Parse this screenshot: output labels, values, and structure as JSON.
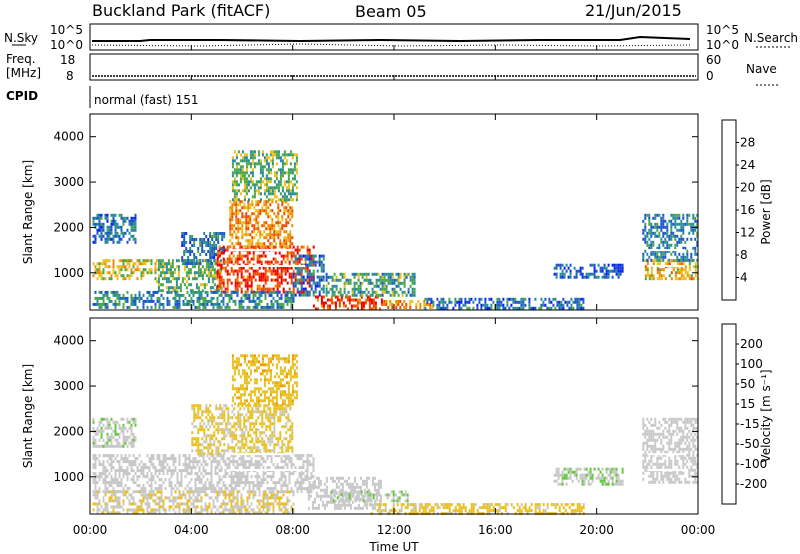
{
  "header": {
    "site": "Buckland Park (fitACF)",
    "beam": "Beam 05",
    "date": "21/Jun/2015"
  },
  "strips": {
    "nsky_label": "N.Sky",
    "nsearch_label": "N.Search",
    "noise_ticks": [
      "10^5",
      "10^0"
    ],
    "freq_label_1": "Freq.",
    "freq_label_2": "[MHz]",
    "freq_ticks": [
      "18",
      "8"
    ],
    "nave_label": "Nave",
    "nave_ticks": [
      "60",
      "0"
    ],
    "cpid_label": "CPID",
    "cpid_text": "normal (fast) 151"
  },
  "x_axis": {
    "label": "Time UT",
    "ticks": [
      "00:00",
      "04:00",
      "08:00",
      "12:00",
      "16:00",
      "20:00",
      "00:00"
    ]
  },
  "colors": {
    "power_scale": [
      "#0a22ee",
      "#1e56c8",
      "#2a8c96",
      "#4aa84a",
      "#e8c020",
      "#f08a00",
      "#f04a00",
      "#ee0000"
    ],
    "velocity_scale": [
      "#ee0000",
      "#f06000",
      "#f09a00",
      "#e8c020",
      "#c8c8c8",
      "#c8c8c8",
      "#64c83c",
      "#3c9c50",
      "#2850a0",
      "#1e32c8"
    ],
    "ground_scatter": "#c8c8c8"
  },
  "chart_data": [
    {
      "type": "heatmap",
      "panel": "power",
      "ylabel": "Slant Range [km]",
      "y_ticks": [
        "1000",
        "2000",
        "3000",
        "4000"
      ],
      "ylim": [
        180,
        4500
      ],
      "xlim": [
        0,
        24
      ],
      "colorbar_label": "Power [dB]",
      "colorbar_ticks": [
        "4",
        "8",
        "12",
        "16",
        "20",
        "24",
        "28"
      ],
      "colorbar_range": [
        0,
        32
      ],
      "regions": [
        {
          "t0": 0.1,
          "t1": 2.6,
          "r0": 900,
          "r1": 1300,
          "v": 18
        },
        {
          "t0": 0.1,
          "t1": 1.8,
          "r0": 1700,
          "r1": 2300,
          "v": 8
        },
        {
          "t0": 2.6,
          "t1": 5.2,
          "r0": 600,
          "r1": 1300,
          "v": 14
        },
        {
          "t0": 3.6,
          "t1": 5.3,
          "r0": 1200,
          "r1": 1900,
          "v": 8
        },
        {
          "t0": 5.0,
          "t1": 8.8,
          "r0": 600,
          "r1": 1600,
          "v": 27
        },
        {
          "t0": 5.5,
          "t1": 8.0,
          "r0": 1600,
          "r1": 2600,
          "v": 22
        },
        {
          "t0": 5.6,
          "t1": 8.2,
          "r0": 2600,
          "r1": 3700,
          "v": 14
        },
        {
          "t0": 8.0,
          "t1": 9.2,
          "r0": 500,
          "r1": 1400,
          "v": 8
        },
        {
          "t0": 8.8,
          "t1": 11.5,
          "r0": 220,
          "r1": 500,
          "v": 27
        },
        {
          "t0": 9.3,
          "t1": 12.8,
          "r0": 500,
          "r1": 1000,
          "v": 12
        },
        {
          "t0": 11.5,
          "t1": 13.5,
          "r0": 220,
          "r1": 400,
          "v": 22
        },
        {
          "t0": 13.2,
          "t1": 19.5,
          "r0": 240,
          "r1": 450,
          "v": 8
        },
        {
          "t0": 18.3,
          "t1": 21.0,
          "r0": 900,
          "r1": 1200,
          "v": 6
        },
        {
          "t0": 21.9,
          "t1": 24.0,
          "r0": 900,
          "r1": 1300,
          "v": 20
        },
        {
          "t0": 21.8,
          "t1": 24.0,
          "r0": 1300,
          "r1": 2300,
          "v": 9
        },
        {
          "t0": 0.1,
          "t1": 8.0,
          "r0": 220,
          "r1": 600,
          "v": 10
        }
      ]
    },
    {
      "type": "heatmap",
      "panel": "velocity",
      "ylabel": "Slant Range [km]",
      "y_ticks": [
        "1000",
        "2000",
        "3000",
        "4000"
      ],
      "ylim": [
        180,
        4500
      ],
      "xlim": [
        0,
        24
      ],
      "colorbar_label": "Velocity [m s⁻¹]",
      "colorbar_ticks": [
        "-200",
        "-100",
        "-50",
        "-15",
        "15",
        "50",
        "100",
        "200"
      ],
      "colorbar_range": [
        -250,
        250
      ],
      "regions": [
        {
          "t0": 0.1,
          "t1": 8.8,
          "r0": 700,
          "r1": 1500,
          "v": 0
        },
        {
          "t0": 0.1,
          "t1": 1.8,
          "r0": 1700,
          "r1": 2300,
          "v": 30
        },
        {
          "t0": 4.0,
          "t1": 8.0,
          "r0": 1500,
          "r1": 2600,
          "v": -60
        },
        {
          "t0": 5.6,
          "t1": 8.2,
          "r0": 2600,
          "r1": 3700,
          "v": -80
        },
        {
          "t0": 8.6,
          "t1": 11.5,
          "r0": 300,
          "r1": 1000,
          "v": 0
        },
        {
          "t0": 11.0,
          "t1": 19.5,
          "r0": 220,
          "r1": 420,
          "v": -70
        },
        {
          "t0": 9.5,
          "t1": 12.5,
          "r0": 500,
          "r1": 700,
          "v": 40
        },
        {
          "t0": 18.3,
          "t1": 21.0,
          "r0": 850,
          "r1": 1200,
          "v": 40
        },
        {
          "t0": 21.8,
          "t1": 24.0,
          "r0": 900,
          "r1": 2300,
          "v": 0
        },
        {
          "t0": 0.1,
          "t1": 8.0,
          "r0": 220,
          "r1": 700,
          "v": -40
        }
      ]
    }
  ]
}
